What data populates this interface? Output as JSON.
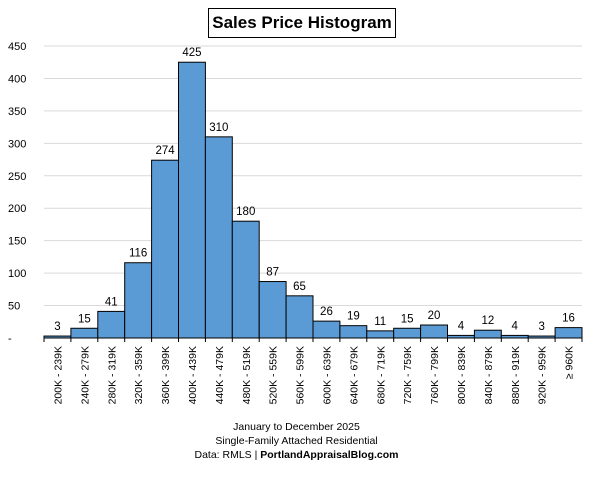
{
  "chart_data": {
    "type": "bar",
    "title": "Sales Price Histogram",
    "categories": [
      "200K - 239K",
      "240K - 279K",
      "280K - 319K",
      "320K - 359K",
      "360K - 399K",
      "400K - 439K",
      "440K - 479K",
      "480K - 519K",
      "520K - 559K",
      "560K - 599K",
      "600K - 639K",
      "640K - 679K",
      "680K - 719K",
      "720K - 759K",
      "760K - 799K",
      "800K - 839K",
      "840K - 879K",
      "880K - 919K",
      "920K - 959K",
      "≥ 960K"
    ],
    "values": [
      3,
      15,
      41,
      116,
      274,
      425,
      310,
      180,
      87,
      65,
      26,
      19,
      11,
      15,
      20,
      4,
      12,
      4,
      3,
      16
    ],
    "y_ticks": [
      "-",
      "50",
      "100",
      "150",
      "200",
      "250",
      "300",
      "350",
      "400",
      "450"
    ],
    "ylim": [
      0,
      450
    ],
    "grid": true,
    "bar_color": "#5b9bd5",
    "bar_edge_color": "#000000"
  },
  "footer": {
    "line1": "January to December 2025",
    "line2": "Single-Family Attached Residential",
    "line3_prefix": "Data: RMLS | ",
    "line3_site": "PortlandAppraisalBlog.com"
  }
}
